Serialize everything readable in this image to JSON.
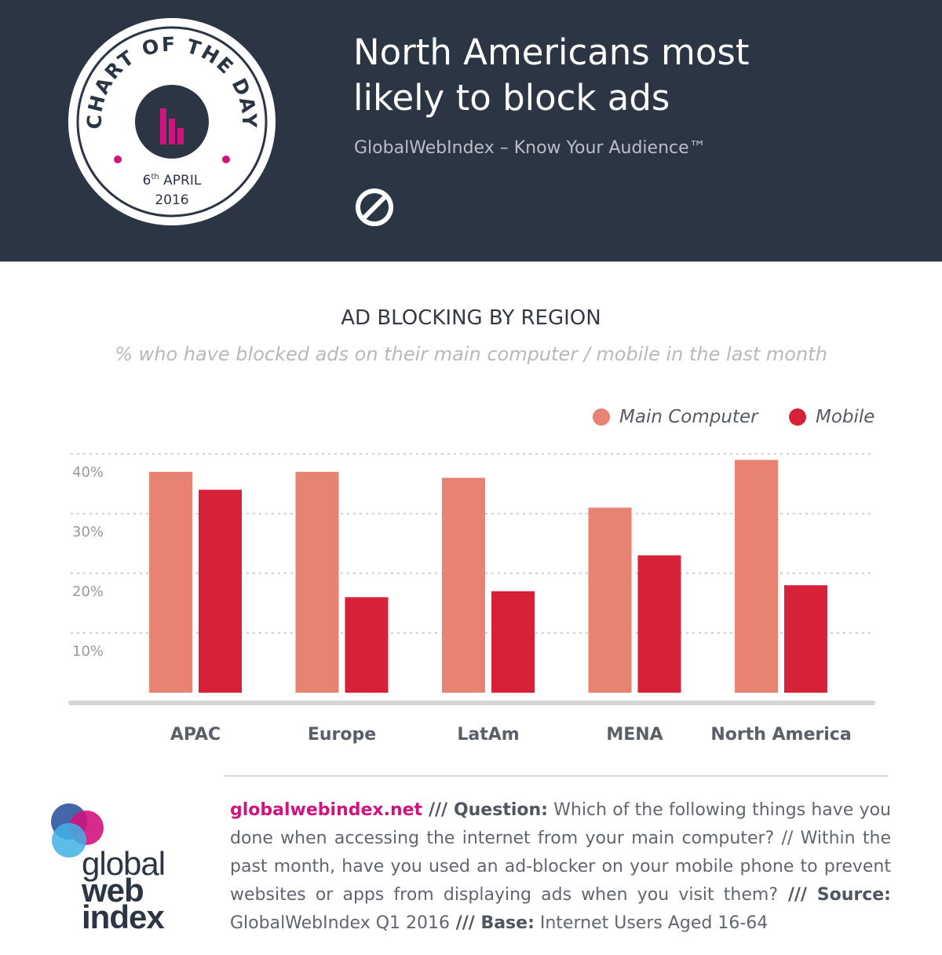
{
  "header": {
    "headline_line1": "North Americans most",
    "headline_line2": "likely to block ads",
    "tagline": "GlobalWebIndex – Know Your Audience™",
    "icon": "no-entry-icon"
  },
  "badge": {
    "arc_text": "CHART OF THE DAY",
    "day": "6",
    "day_suffix": "th",
    "month": "APRIL",
    "year": "2016",
    "icon": "bar-chart-icon"
  },
  "chart": {
    "title": "AD BLOCKING BY REGION",
    "subtitle": "% who have blocked ads on their main computer / mobile in the last month"
  },
  "legend": {
    "main_computer": "Main Computer",
    "mobile": "Mobile"
  },
  "chart_data": {
    "type": "bar",
    "title": "AD BLOCKING BY REGION",
    "subtitle": "% who have blocked ads on their main computer / mobile in the last month",
    "categories": [
      "APAC",
      "Europe",
      "LatAm",
      "MENA",
      "North America"
    ],
    "series": [
      {
        "name": "Main Computer",
        "values": [
          37,
          37,
          36,
          31,
          39
        ],
        "color": "#e88373"
      },
      {
        "name": "Mobile",
        "values": [
          34,
          16,
          17,
          23,
          18
        ],
        "color": "#d62138"
      }
    ],
    "y_ticks": [
      10,
      20,
      30,
      40
    ],
    "y_tick_labels": [
      "10%",
      "20%",
      "30%",
      "40%"
    ],
    "ylim": [
      0,
      40
    ],
    "grid": true,
    "legend_position": "top-right"
  },
  "footer": {
    "site": "globalwebindex.net",
    "sep1": " /// ",
    "question_label": "Question:",
    "question_text": " Which of the following things have you done when accessing the internet from your main computer? // Within the past month, have you used an ad-blocker on your mobile phone to prevent websites or apps from displaying ads when you visit them?",
    "sep2": " /// ",
    "source_label": "Source:",
    "source_text": " GlobalWebIndex Q1 2016",
    "sep3": " /// ",
    "base_label": "Base:",
    "base_text": " Internet Users Aged 16-64"
  },
  "logo": {
    "word1": "global",
    "word2": "web",
    "word3": "index"
  },
  "colors": {
    "header_bg": "#2b3544",
    "main_computer": "#e88373",
    "mobile": "#d62138",
    "accent_pink": "#d1137f"
  }
}
